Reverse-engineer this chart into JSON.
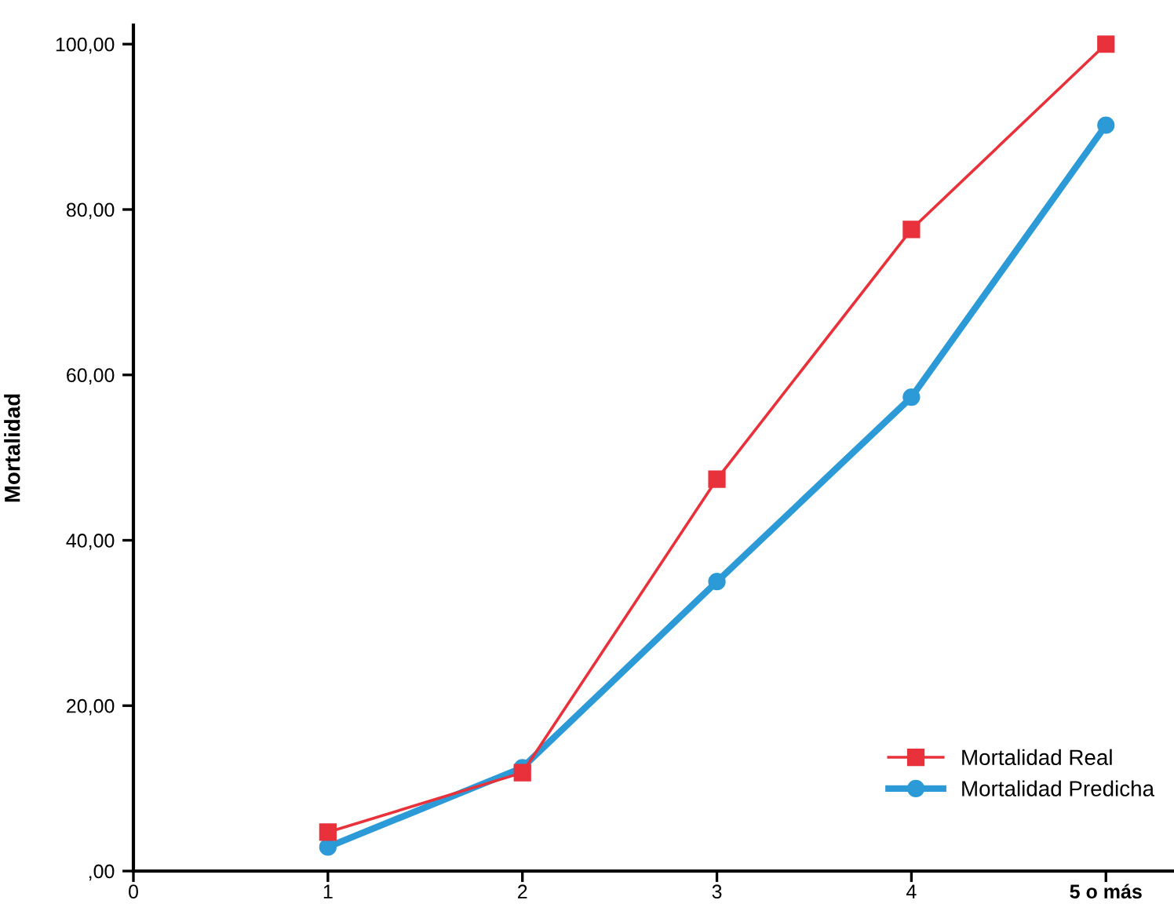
{
  "chart_data": {
    "type": "line",
    "ylabel": "Mortalidad",
    "x": [
      1,
      2,
      3,
      4,
      5
    ],
    "series": [
      {
        "name": "Mortalidad Real",
        "color": "#e8313a",
        "marker": "square",
        "values": [
          4.7,
          11.9,
          47.4,
          77.6,
          100
        ]
      },
      {
        "name": "Mortalidad Predicha",
        "color": "#2b9ad6",
        "marker": "circle",
        "values": [
          2.9,
          12.5,
          35.0,
          57.3,
          90.2
        ]
      }
    ],
    "xlim": [
      0,
      5.35
    ],
    "xticks": [
      0,
      1,
      2,
      3,
      4,
      {
        "value": 5,
        "label": "5 o más"
      }
    ],
    "ylim": [
      0,
      102.3
    ],
    "yticks": [
      {
        "value": 0,
        "label": ",00"
      },
      {
        "value": 20,
        "label": "20,00"
      },
      {
        "value": 40,
        "label": "40,00"
      },
      {
        "value": 60,
        "label": "60,00"
      },
      {
        "value": 80,
        "label": "80,00"
      },
      {
        "value": 100,
        "label": "100,00"
      }
    ],
    "grid": false,
    "legend": "bottom right",
    "line_style": "solid"
  }
}
